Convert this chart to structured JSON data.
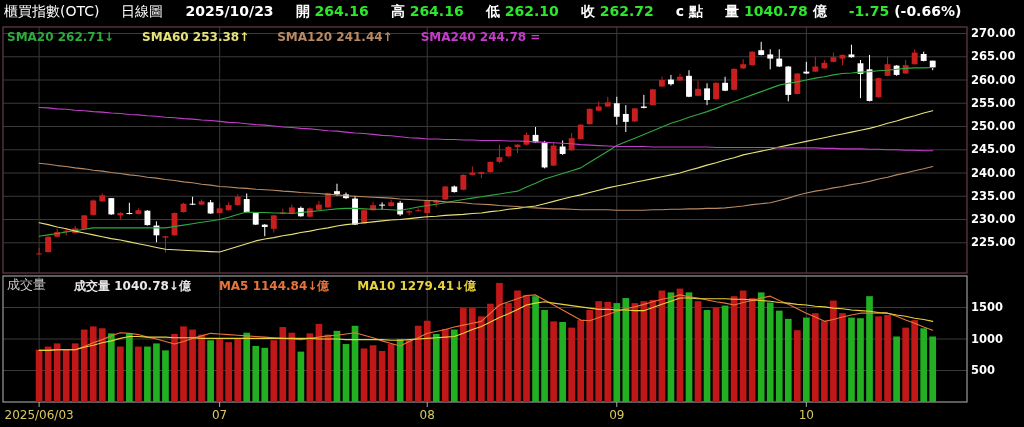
{
  "chart_data": [
    {
      "type": "candlestick",
      "title": "櫃買指數(OTC)",
      "subtitle": "日線圖",
      "annotations": [
        "2025/10/23",
        "開 264.16",
        "高 264.16",
        "低 262.10",
        "收 262.72",
        "c 點",
        "量 1040.78 億",
        "-1.75 (-0.66%)"
      ],
      "categories": [
        "2025/06/03",
        null,
        null,
        null,
        null,
        null,
        null,
        null,
        null,
        null,
        null,
        null,
        null,
        null,
        null,
        null,
        null,
        null,
        null,
        null,
        "07",
        null,
        null,
        null,
        null,
        null,
        null,
        null,
        null,
        null,
        null,
        null,
        null,
        null,
        null,
        null,
        null,
        null,
        null,
        null,
        null,
        null,
        null,
        "08",
        null,
        null,
        null,
        null,
        null,
        null,
        null,
        null,
        null,
        null,
        null,
        null,
        null,
        null,
        null,
        null,
        null,
        null,
        null,
        null,
        "09",
        null,
        null,
        null,
        null,
        null,
        null,
        null,
        null,
        null,
        null,
        null,
        null,
        null,
        null,
        null,
        null,
        null,
        null,
        null,
        null,
        "10",
        null,
        null,
        null,
        null,
        null,
        null,
        null,
        null,
        null,
        null,
        null,
        null,
        null,
        null
      ],
      "ohlc": [
        [
          222.6,
          223.9,
          222.5,
          222.7
        ],
        [
          223.0,
          226.4,
          222.9,
          226.3
        ],
        [
          226.3,
          228.0,
          226.2,
          227.3
        ],
        [
          227.4,
          228.2,
          226.6,
          227.6
        ],
        [
          227.1,
          228.6,
          227.0,
          228.1
        ],
        [
          228.0,
          231.0,
          227.9,
          230.9
        ],
        [
          231.0,
          234.3,
          230.9,
          234.1
        ],
        [
          233.9,
          235.6,
          233.8,
          235.2
        ],
        [
          234.6,
          234.6,
          231.0,
          231.1
        ],
        [
          230.9,
          231.6,
          230.0,
          231.4
        ],
        [
          231.4,
          233.6,
          231.1,
          231.2
        ],
        [
          231.2,
          232.4,
          231.1,
          232.0
        ],
        [
          231.9,
          232.0,
          228.7,
          228.8
        ],
        [
          228.7,
          229.6,
          225.1,
          226.6
        ],
        [
          226.1,
          226.5,
          222.9,
          226.4
        ],
        [
          226.6,
          231.5,
          226.5,
          231.4
        ],
        [
          231.6,
          233.6,
          231.5,
          233.4
        ],
        [
          233.4,
          234.9,
          233.1,
          233.2
        ],
        [
          233.2,
          234.3,
          233.1,
          233.9
        ],
        [
          233.7,
          234.2,
          231.2,
          231.3
        ],
        [
          231.4,
          233.5,
          231.3,
          232.4
        ],
        [
          232.0,
          233.7,
          231.9,
          233.1
        ],
        [
          233.1,
          235.4,
          233.0,
          234.9
        ],
        [
          234.4,
          235.6,
          231.5,
          231.6
        ],
        [
          231.4,
          231.6,
          228.8,
          228.9
        ],
        [
          228.9,
          229.0,
          226.4,
          228.4
        ],
        [
          228.0,
          231.0,
          227.2,
          230.9
        ],
        [
          231.2,
          232.3,
          231.1,
          231.5
        ],
        [
          231.4,
          233.2,
          231.3,
          232.6
        ],
        [
          232.5,
          232.8,
          230.6,
          230.7
        ],
        [
          230.6,
          232.6,
          230.5,
          232.4
        ],
        [
          232.1,
          234.0,
          232.0,
          233.2
        ],
        [
          232.6,
          235.8,
          232.5,
          235.7
        ],
        [
          236.1,
          237.7,
          235.1,
          235.4
        ],
        [
          235.4,
          235.8,
          234.4,
          234.6
        ],
        [
          234.5,
          235.1,
          228.8,
          228.9
        ],
        [
          229.1,
          232.1,
          229.0,
          232.0
        ],
        [
          232.0,
          233.8,
          231.9,
          233.1
        ],
        [
          233.2,
          233.7,
          232.1,
          233.0
        ],
        [
          232.9,
          234.2,
          232.8,
          233.7
        ],
        [
          233.6,
          234.0,
          230.8,
          231.1
        ],
        [
          231.5,
          232.0,
          230.9,
          231.8
        ],
        [
          231.8,
          232.4,
          231.7,
          232.0
        ],
        [
          231.4,
          234.3,
          229.9,
          234.1
        ],
        [
          233.6,
          234.3,
          232.7,
          234.0
        ],
        [
          234.3,
          237.2,
          234.2,
          237.1
        ],
        [
          237.1,
          237.3,
          235.8,
          235.9
        ],
        [
          236.4,
          239.7,
          236.3,
          239.6
        ],
        [
          239.6,
          241.4,
          239.5,
          240.1
        ],
        [
          239.8,
          240.3,
          238.9,
          240.2
        ],
        [
          240.2,
          242.5,
          240.1,
          242.4
        ],
        [
          242.4,
          246.1,
          242.1,
          243.4
        ],
        [
          243.6,
          245.8,
          243.5,
          245.6
        ],
        [
          245.6,
          246.2,
          244.3,
          246.1
        ],
        [
          246.1,
          248.7,
          246.0,
          248.2
        ],
        [
          248.2,
          249.9,
          246.5,
          246.6
        ],
        [
          246.6,
          246.9,
          241.0,
          241.2
        ],
        [
          241.6,
          246.6,
          241.5,
          245.9
        ],
        [
          245.7,
          247.0,
          243.9,
          244.1
        ],
        [
          244.9,
          248.6,
          244.8,
          247.5
        ],
        [
          247.3,
          250.5,
          247.2,
          250.4
        ],
        [
          250.5,
          253.9,
          250.4,
          253.8
        ],
        [
          253.4,
          255.4,
          253.3,
          254.3
        ],
        [
          254.3,
          256.4,
          254.2,
          255.2
        ],
        [
          255.0,
          256.4,
          250.4,
          252.1
        ],
        [
          252.7,
          254.6,
          248.8,
          251.0
        ],
        [
          251.1,
          254.0,
          251.0,
          253.9
        ],
        [
          254.3,
          256.8,
          253.9,
          254.0
        ],
        [
          254.6,
          258.1,
          254.5,
          258.0
        ],
        [
          258.6,
          260.7,
          258.5,
          260.0
        ],
        [
          260.1,
          261.1,
          258.8,
          259.1
        ],
        [
          259.9,
          261.4,
          259.8,
          260.7
        ],
        [
          260.9,
          262.1,
          256.3,
          256.4
        ],
        [
          256.6,
          259.9,
          256.5,
          258.1
        ],
        [
          258.2,
          259.3,
          254.6,
          255.7
        ],
        [
          255.9,
          259.5,
          255.8,
          259.4
        ],
        [
          259.4,
          260.7,
          257.6,
          257.7
        ],
        [
          257.9,
          262.5,
          257.8,
          262.4
        ],
        [
          262.5,
          264.5,
          262.4,
          263.4
        ],
        [
          263.2,
          266.2,
          263.1,
          266.1
        ],
        [
          266.4,
          268.2,
          265.3,
          265.4
        ],
        [
          265.5,
          266.6,
          262.3,
          264.6
        ],
        [
          264.6,
          266.6,
          262.8,
          262.9
        ],
        [
          262.9,
          263.0,
          255.4,
          256.8
        ],
        [
          257.0,
          261.5,
          256.9,
          261.4
        ],
        [
          261.8,
          263.9,
          261.3,
          261.4
        ],
        [
          261.8,
          265.0,
          261.7,
          262.9
        ],
        [
          262.5,
          264.3,
          262.4,
          263.7
        ],
        [
          263.9,
          265.9,
          263.8,
          264.9
        ],
        [
          264.6,
          265.5,
          263.2,
          265.4
        ],
        [
          265.5,
          267.6,
          264.8,
          264.9
        ],
        [
          263.6,
          264.3,
          256.1,
          261.3
        ],
        [
          262.3,
          265.4,
          255.4,
          255.5
        ],
        [
          256.3,
          260.5,
          256.2,
          260.4
        ],
        [
          260.9,
          265.0,
          260.8,
          263.4
        ],
        [
          263.1,
          263.2,
          260.9,
          261.1
        ],
        [
          261.4,
          264.3,
          261.3,
          263.2
        ],
        [
          263.4,
          266.6,
          263.3,
          265.9
        ],
        [
          265.6,
          266.1,
          264.0,
          264.1
        ],
        [
          264.16,
          264.16,
          262.1,
          262.72
        ]
      ],
      "series": [
        {
          "type": "line",
          "name": "SMA20 262.71↓",
          "color": "#2faa3f",
          "values": [
            226.4,
            226.7,
            227.0,
            227.3,
            227.6,
            227.9,
            228.2,
            228.2,
            228.2,
            228.2,
            228.2,
            228.2,
            228.2,
            228.2,
            228.2,
            228.5,
            228.8,
            229.1,
            229.4,
            229.7,
            230.0,
            230.5,
            231.1,
            231.6,
            231.5,
            231.5,
            231.4,
            231.4,
            231.3,
            231.5,
            231.7,
            231.9,
            232.1,
            232.3,
            232.4,
            232.4,
            232.3,
            232.2,
            232.2,
            232.1,
            232.0,
            232.3,
            232.7,
            233.0,
            233.3,
            233.6,
            234.0,
            234.3,
            234.6,
            234.9,
            235.2,
            235.5,
            235.8,
            236.1,
            237.0,
            237.8,
            238.7,
            239.3,
            239.9,
            240.5,
            241.1,
            242.3,
            243.5,
            244.7,
            245.9,
            246.7,
            247.5,
            248.3,
            249.1,
            249.9,
            250.7,
            251.3,
            252.0,
            252.6,
            253.2,
            253.9,
            254.7,
            255.4,
            256.1,
            256.8,
            257.5,
            258.2,
            258.9,
            259.3,
            259.6,
            260.0,
            260.4,
            260.7,
            261.1,
            261.4,
            261.5,
            261.7,
            261.8,
            262.0,
            262.1,
            262.3,
            262.5,
            262.6,
            262.6,
            262.7
          ]
        },
        {
          "type": "line",
          "name": "SMA60 253.38↑",
          "color": "#e6e27a",
          "values": [
            229.3,
            228.9,
            228.4,
            228.0,
            227.5,
            227.1,
            226.7,
            226.3,
            225.9,
            225.6,
            225.2,
            224.8,
            224.4,
            224.0,
            223.6,
            223.5,
            223.4,
            223.3,
            223.2,
            223.1,
            223.0,
            223.6,
            224.2,
            224.8,
            225.4,
            225.8,
            226.1,
            226.5,
            226.8,
            227.2,
            227.5,
            227.9,
            228.2,
            228.6,
            228.9,
            229.1,
            229.3,
            229.5,
            229.7,
            229.9,
            230.0,
            230.2,
            230.4,
            230.6,
            230.7,
            230.9,
            231.0,
            231.1,
            231.3,
            231.4,
            231.7,
            231.9,
            232.2,
            232.4,
            232.7,
            232.9,
            233.4,
            233.9,
            234.4,
            234.9,
            235.3,
            235.8,
            236.3,
            236.8,
            237.2,
            237.6,
            238.0,
            238.4,
            238.8,
            239.2,
            239.6,
            240.0,
            240.6,
            241.1,
            241.7,
            242.2,
            242.8,
            243.3,
            243.9,
            244.3,
            244.7,
            245.1,
            245.6,
            246.0,
            246.4,
            246.8,
            247.2,
            247.6,
            248.0,
            248.4,
            248.8,
            249.2,
            249.6,
            250.1,
            250.7,
            251.2,
            251.8,
            252.3,
            252.9,
            253.4
          ]
        },
        {
          "type": "line",
          "name": "SMA120 241.44↑",
          "color": "#b88a64",
          "values": [
            242.1,
            241.9,
            241.6,
            241.4,
            241.1,
            240.9,
            240.6,
            240.4,
            240.1,
            239.9,
            239.6,
            239.4,
            239.1,
            238.9,
            238.6,
            238.4,
            238.1,
            237.9,
            237.6,
            237.4,
            237.1,
            237.0,
            236.8,
            236.7,
            236.5,
            236.4,
            236.3,
            236.1,
            236.0,
            235.8,
            235.7,
            235.6,
            235.4,
            235.3,
            235.1,
            235.0,
            234.9,
            234.8,
            234.7,
            234.6,
            234.4,
            234.3,
            234.2,
            234.1,
            234.0,
            233.8,
            233.7,
            233.6,
            233.4,
            233.3,
            233.2,
            233.0,
            232.9,
            232.8,
            232.6,
            232.5,
            232.4,
            232.3,
            232.3,
            232.2,
            232.1,
            232.1,
            232.1,
            232.1,
            232.0,
            232.0,
            232.0,
            232.0,
            232.1,
            232.1,
            232.2,
            232.2,
            232.3,
            232.3,
            232.4,
            232.4,
            232.5,
            232.7,
            232.9,
            233.2,
            233.4,
            233.6,
            234.1,
            234.6,
            235.2,
            235.7,
            236.1,
            236.4,
            236.8,
            237.1,
            237.5,
            237.8,
            238.2,
            238.7,
            239.1,
            239.6,
            240.0,
            240.5,
            240.9,
            241.4
          ]
        },
        {
          "type": "line",
          "name": "SMA240 244.78 =",
          "color": "#c23ec8",
          "values": [
            254.1,
            254.0,
            253.8,
            253.7,
            253.5,
            253.4,
            253.2,
            253.1,
            252.9,
            252.8,
            252.6,
            252.5,
            252.3,
            252.2,
            252.0,
            251.9,
            251.7,
            251.6,
            251.4,
            251.3,
            251.1,
            250.9,
            250.8,
            250.6,
            250.4,
            250.3,
            250.1,
            249.9,
            249.8,
            249.6,
            249.5,
            249.3,
            249.1,
            249.0,
            248.8,
            248.6,
            248.5,
            248.3,
            248.1,
            248.0,
            247.8,
            247.6,
            247.5,
            247.3,
            247.3,
            247.2,
            247.2,
            247.1,
            247.1,
            247.0,
            247.0,
            247.0,
            246.9,
            246.9,
            246.8,
            246.7,
            246.6,
            246.5,
            246.4,
            246.3,
            246.1,
            246.0,
            245.9,
            245.8,
            245.7,
            245.7,
            245.7,
            245.7,
            245.6,
            245.6,
            245.6,
            245.6,
            245.6,
            245.6,
            245.6,
            245.5,
            245.5,
            245.5,
            245.5,
            245.5,
            245.5,
            245.5,
            245.4,
            245.4,
            245.4,
            245.4,
            245.4,
            245.3,
            245.3,
            245.2,
            245.2,
            245.2,
            245.1,
            245.1,
            245.0,
            245.0,
            244.9,
            244.9,
            244.8,
            244.8
          ]
        }
      ],
      "ylim": [
        218.5,
        271.4
      ],
      "yticks": [
        {
          "value": 225,
          "label": "225.00"
        },
        {
          "value": 230,
          "label": "230.00"
        },
        {
          "value": 235,
          "label": "235.00"
        },
        {
          "value": 240,
          "label": "240.00"
        },
        {
          "value": 245,
          "label": "245.00"
        },
        {
          "value": 250,
          "label": "250.00"
        },
        {
          "value": 255,
          "label": "255.00"
        },
        {
          "value": 260,
          "label": "260.00"
        },
        {
          "value": 265,
          "label": "265.00"
        },
        {
          "value": 270,
          "label": "270.00"
        }
      ],
      "tick_labels": "y",
      "grid": true,
      "legend": "top left"
    },
    {
      "type": "bar",
      "title": "成交量",
      "categories": [
        "2025/06/03",
        null,
        null,
        null,
        null,
        null,
        null,
        null,
        null,
        null,
        null,
        null,
        null,
        null,
        null,
        null,
        null,
        null,
        null,
        null,
        "07",
        null,
        null,
        null,
        null,
        null,
        null,
        null,
        null,
        null,
        null,
        null,
        null,
        null,
        null,
        null,
        null,
        null,
        null,
        null,
        null,
        null,
        null,
        "08",
        null,
        null,
        null,
        null,
        null,
        null,
        null,
        null,
        null,
        null,
        null,
        null,
        null,
        null,
        null,
        null,
        null,
        null,
        null,
        null,
        "09",
        null,
        null,
        null,
        null,
        null,
        null,
        null,
        null,
        null,
        null,
        null,
        null,
        null,
        null,
        null,
        null,
        null,
        null,
        null,
        null,
        "10",
        null,
        null,
        null,
        null,
        null,
        null,
        null,
        null,
        null,
        null,
        null,
        null,
        null,
        null
      ],
      "series": [
        {
          "name": "成交量 1040.78↓億",
          "values": [
            830,
            880,
            930,
            830,
            930,
            1150,
            1200,
            1170,
            1090,
            880,
            1090,
            880,
            880,
            930,
            820,
            1080,
            1200,
            1150,
            1070,
            980,
            1000,
            950,
            1010,
            1100,
            890,
            860,
            980,
            1190,
            1100,
            800,
            1090,
            1240,
            1070,
            1130,
            920,
            1210,
            850,
            900,
            810,
            920,
            1000,
            980,
            1210,
            1290,
            1080,
            1160,
            1150,
            1490,
            1490,
            1360,
            1560,
            1890,
            1570,
            1770,
            1700,
            1680,
            1460,
            1280,
            1270,
            1180,
            1300,
            1460,
            1600,
            1590,
            1570,
            1650,
            1570,
            1600,
            1620,
            1770,
            1740,
            1800,
            1740,
            1600,
            1460,
            1500,
            1530,
            1680,
            1770,
            1650,
            1740,
            1580,
            1450,
            1320,
            1140,
            1340,
            1410,
            1280,
            1610,
            1410,
            1340,
            1330,
            1680,
            1360,
            1380,
            1040,
            1180,
            1300,
            1170,
            1040
          ],
          "colors": [
            "#c01818",
            "#c01818",
            "#c01818",
            "#c01818",
            "#c01818",
            "#c01818",
            "#c01818",
            "#c01818",
            "#22b022",
            "#c01818",
            "#22b022",
            "#c01818",
            "#22b022",
            "#22b022",
            "#22b022",
            "#c01818",
            "#c01818",
            "#c01818",
            "#c01818",
            "#22b022",
            "#c01818",
            "#c01818",
            "#c01818",
            "#22b022",
            "#22b022",
            "#22b022",
            "#c01818",
            "#c01818",
            "#c01818",
            "#22b022",
            "#c01818",
            "#c01818",
            "#c01818",
            "#22b022",
            "#22b022",
            "#22b022",
            "#c01818",
            "#c01818",
            "#c01818",
            "#c01818",
            "#22b022",
            "#c01818",
            "#c01818",
            "#c01818",
            "#22b022",
            "#c01818",
            "#22b022",
            "#c01818",
            "#c01818",
            "#c01818",
            "#c01818",
            "#c01818",
            "#c01818",
            "#c01818",
            "#c01818",
            "#22b022",
            "#22b022",
            "#c01818",
            "#22b022",
            "#c01818",
            "#c01818",
            "#c01818",
            "#c01818",
            "#c01818",
            "#22b022",
            "#22b022",
            "#c01818",
            "#c01818",
            "#c01818",
            "#c01818",
            "#22b022",
            "#c01818",
            "#22b022",
            "#c01818",
            "#22b022",
            "#c01818",
            "#22b022",
            "#c01818",
            "#c01818",
            "#c01818",
            "#22b022",
            "#22b022",
            "#22b022",
            "#22b022",
            "#c01818",
            "#22b022",
            "#c01818",
            "#c01818",
            "#c01818",
            "#c01818",
            "#22b022",
            "#22b022",
            "#22b022",
            "#c01818",
            "#c01818",
            "#22b022",
            "#c01818",
            "#c01818",
            "#22b022",
            "#22b022"
          ]
        },
        {
          "type": "line",
          "name": "MA5 1144.84↓億",
          "color": "#e8743a",
          "values": [
            820,
            820,
            830,
            830,
            830,
            880,
            940,
            990,
            1050,
            1100,
            1090,
            1070,
            1030,
            1000,
            960,
            920,
            960,
            1010,
            1050,
            1090,
            1080,
            1070,
            1060,
            1050,
            1040,
            1030,
            1020,
            1010,
            1000,
            990,
            1010,
            1030,
            1050,
            1060,
            1080,
            1100,
            1060,
            1020,
            970,
            930,
            890,
            960,
            1020,
            1090,
            1120,
            1150,
            1190,
            1220,
            1250,
            1280,
            1410,
            1540,
            1590,
            1640,
            1690,
            1700,
            1620,
            1540,
            1460,
            1380,
            1300,
            1290,
            1340,
            1390,
            1440,
            1480,
            1510,
            1550,
            1590,
            1630,
            1660,
            1700,
            1670,
            1650,
            1620,
            1590,
            1570,
            1540,
            1580,
            1610,
            1650,
            1680,
            1610,
            1550,
            1480,
            1410,
            1350,
            1280,
            1310,
            1350,
            1380,
            1410,
            1410,
            1410,
            1410,
            1360,
            1300,
            1250,
            1190,
            1140
          ]
        },
        {
          "type": "line",
          "name": "MA10 1279.41↓億",
          "color": "#e8d23c",
          "values": [
            820,
            820,
            830,
            830,
            830,
            870,
            900,
            940,
            970,
            1010,
            1040,
            1040,
            1030,
            1030,
            1030,
            1020,
            1020,
            1020,
            1010,
            1010,
            1010,
            1010,
            1010,
            1010,
            1010,
            1010,
            1010,
            1010,
            1010,
            1010,
            1010,
            1000,
            1000,
            1000,
            990,
            990,
            990,
            990,
            990,
            980,
            980,
            990,
            1000,
            1010,
            1020,
            1030,
            1040,
            1090,
            1150,
            1200,
            1270,
            1340,
            1400,
            1470,
            1540,
            1570,
            1590,
            1570,
            1550,
            1530,
            1510,
            1490,
            1470,
            1470,
            1460,
            1460,
            1450,
            1450,
            1500,
            1550,
            1600,
            1650,
            1650,
            1640,
            1640,
            1640,
            1640,
            1630,
            1630,
            1620,
            1610,
            1600,
            1580,
            1570,
            1550,
            1540,
            1520,
            1510,
            1490,
            1480,
            1460,
            1450,
            1440,
            1420,
            1410,
            1380,
            1360,
            1330,
            1310,
            1280
          ]
        }
      ],
      "ylim": [
        0,
        2000
      ],
      "yticks": [
        500,
        1000,
        1500
      ],
      "grid": true,
      "legend": "top left"
    }
  ]
}
